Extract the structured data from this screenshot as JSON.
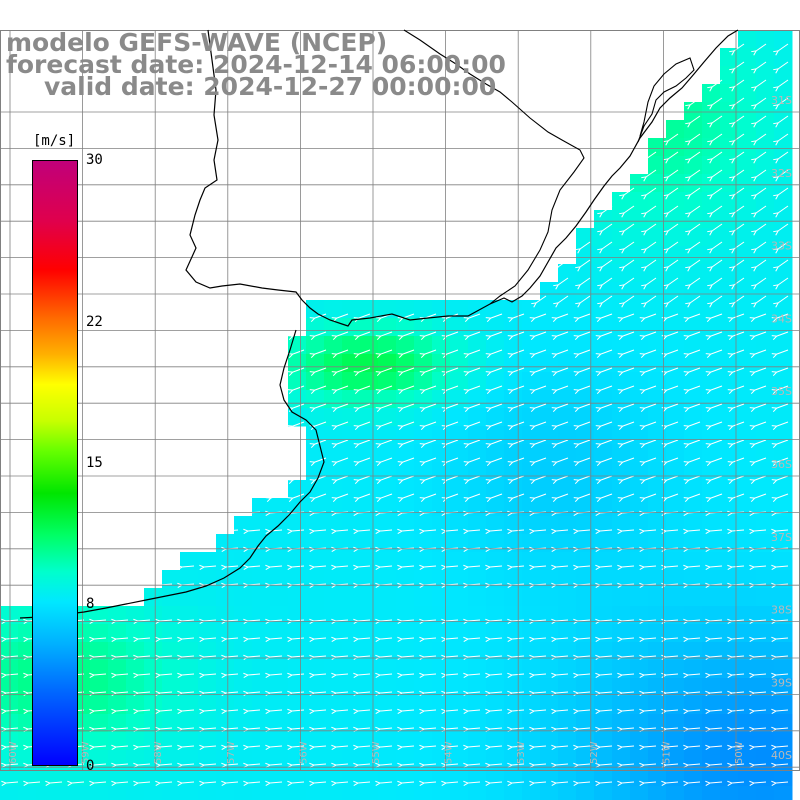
{
  "title": {
    "model": "modelo GEFS-WAVE (NCEP)",
    "forecast": "forecast date: 2024-12-14 06:00:00",
    "valid": "valid date: 2024-12-27 00:00:00"
  },
  "colorbar": {
    "unit": "[m/s]",
    "ticks": [
      {
        "label": "30",
        "value": 30
      },
      {
        "label": "22",
        "value": 22
      },
      {
        "label": "15",
        "value": 15
      },
      {
        "label": "8",
        "value": 8
      },
      {
        "label": "0",
        "value": 0
      }
    ],
    "range": [
      0,
      30
    ]
  },
  "map": {
    "lon_range": [
      -60,
      -49
    ],
    "lat_range": [
      -41.5,
      -30.5
    ],
    "grid_step_deg": 1,
    "grid_color": "#808080",
    "land_color": "#ffffff",
    "coast_color": "#000000",
    "arrow_color": "#ffffff",
    "lat_labels": [
      {
        "text": "31S",
        "lat": -31
      },
      {
        "text": "32S",
        "lat": -32
      },
      {
        "text": "33S",
        "lat": -33
      },
      {
        "text": "34S",
        "lat": -34
      },
      {
        "text": "35S",
        "lat": -35
      },
      {
        "text": "36S",
        "lat": -36
      },
      {
        "text": "37S",
        "lat": -37
      },
      {
        "text": "38S",
        "lat": -38
      },
      {
        "text": "39S",
        "lat": -39
      },
      {
        "text": "40S",
        "lat": -40
      },
      {
        "text": "41S",
        "lat": -41
      }
    ],
    "lon_labels": [
      {
        "text": "60W",
        "lon": -60
      },
      {
        "text": "59W",
        "lon": -59
      },
      {
        "text": "58W",
        "lon": -58
      },
      {
        "text": "57W",
        "lon": -57
      },
      {
        "text": "56W",
        "lon": -56
      },
      {
        "text": "55W",
        "lon": -55
      },
      {
        "text": "54W",
        "lon": -54
      },
      {
        "text": "53W",
        "lon": -53
      },
      {
        "text": "52W",
        "lon": -52
      },
      {
        "text": "51W",
        "lon": -51
      },
      {
        "text": "50W",
        "lon": -50
      },
      {
        "text": "49W",
        "lon": -49
      }
    ]
  }
}
